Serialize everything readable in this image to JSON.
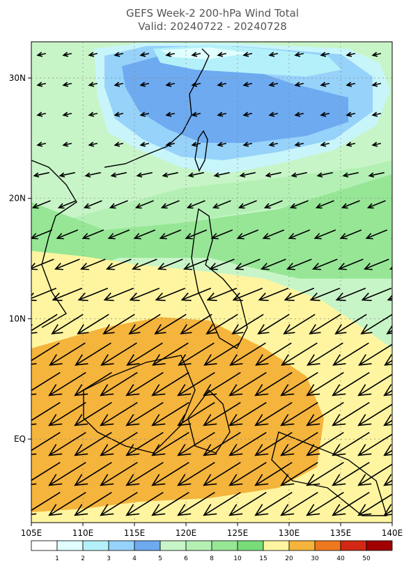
{
  "header": {
    "title": "GEFS Week-2 200-hPa Wind Total",
    "subtitle": "Valid: 20240722 - 20240728"
  },
  "map": {
    "lat_labels": [
      "30N",
      "20N",
      "10N",
      "EQ"
    ],
    "lon_labels": [
      "105E",
      "110E",
      "115E",
      "120E",
      "125E",
      "130E",
      "135E",
      "140E"
    ]
  },
  "colorbar": {
    "levels": [
      1,
      2,
      3,
      4,
      5,
      6,
      8,
      10,
      15,
      20,
      30,
      40,
      50
    ],
    "colors": [
      "#ffffff",
      "#e1ffff",
      "#b4f0fa",
      "#96d2fa",
      "#6eaaf0",
      "#c8f5c8",
      "#b4f0b4",
      "#96e696",
      "#78dc78",
      "#fff5a0",
      "#f5b43c",
      "#f0781e",
      "#d22814",
      "#a00000"
    ]
  }
}
